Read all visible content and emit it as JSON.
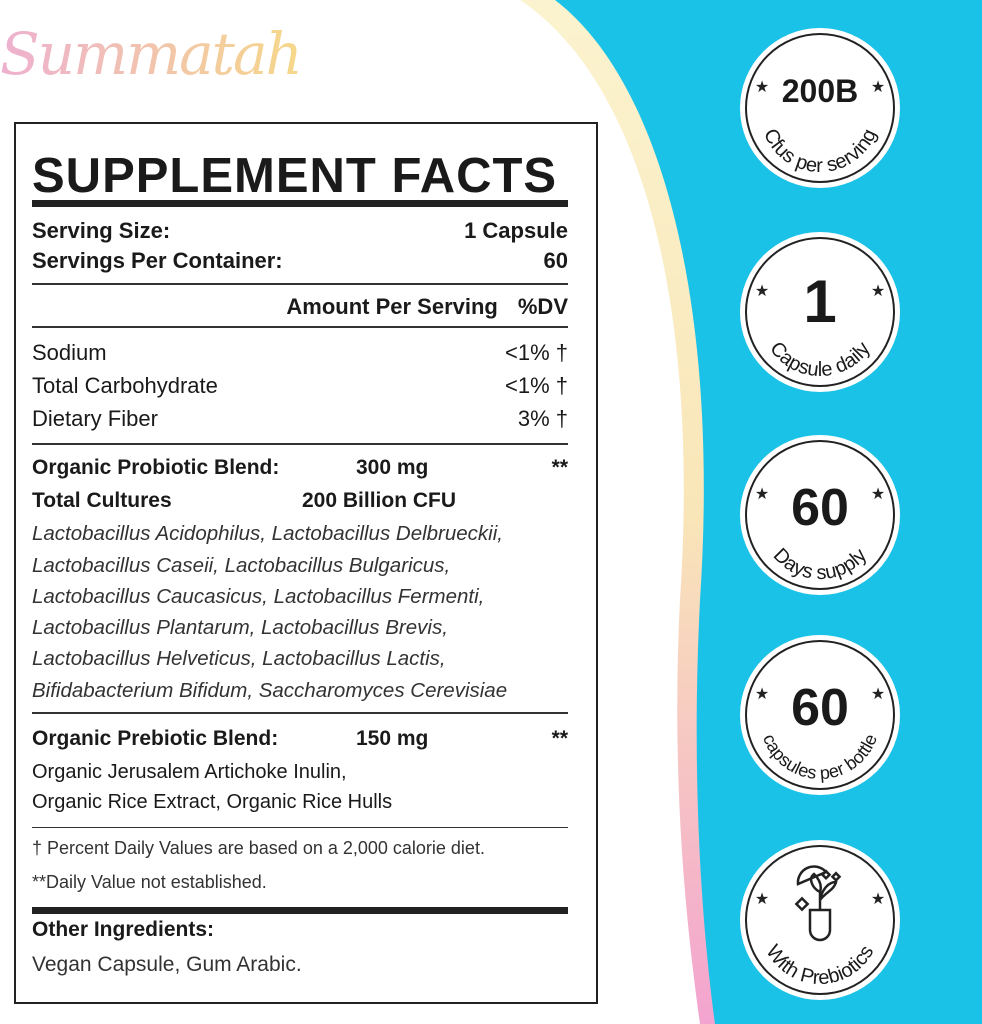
{
  "brand": "Summatah",
  "colors": {
    "accent": "#1bc2e8",
    "stripe_top": "#f9ecb0",
    "stripe_bottom": "#f2a6cf"
  },
  "facts": {
    "title": "SUPPLEMENT FACTS",
    "serving_size_label": "Serving Size:",
    "serving_size": "1 Capsule",
    "servings_label": "Servings Per Container:",
    "servings": "60",
    "amount_label": "Amount Per Serving",
    "dv_label": "%DV",
    "nutrients": [
      {
        "name": "Sodium",
        "dv": "<1% †"
      },
      {
        "name": "Total Carbohydrate",
        "dv": "<1% †"
      },
      {
        "name": "Dietary Fiber",
        "dv": "3% †"
      }
    ],
    "probiotic": {
      "name": "Organic Probiotic Blend:",
      "amount": "300 mg",
      "dv": "**",
      "cultures_label": "Total Cultures",
      "cultures": "200 Billion CFU",
      "strains": [
        "Lactobacillus Acidophilus, Lactobacillus Delbrueckii,",
        "Lactobacillus Caseii, Lactobacillus Bulgaricus,",
        "Lactobacillus Caucasicus, Lactobacillus Fermenti,",
        "Lactobacillus Plantarum, Lactobacillus Brevis,",
        "Lactobacillus Helveticus, Lactobacillus Lactis,",
        "Bifidabacterium Bifidum, Saccharomyces Cerevisiae"
      ]
    },
    "prebiotic": {
      "name": "Organic Prebiotic Blend:",
      "amount": "150 mg",
      "dv": "**",
      "lines": [
        "Organic Jerusalem Artichoke Inulin,",
        "Organic Rice Extract, Organic Rice Hulls"
      ]
    },
    "footnotes": [
      "† Percent Daily Values are based on a 2,000 calorie diet.",
      "**Daily Value not established."
    ],
    "other_label": "Other Ingredients:",
    "other": "Vegan Capsule, Gum Arabic."
  },
  "badges": [
    {
      "big": "200B",
      "curve": "Cfus per serving",
      "icon": "stars"
    },
    {
      "big": "1",
      "curve": "Capsule daily",
      "icon": "stars"
    },
    {
      "big": "60",
      "curve": "Days supply",
      "icon": "stars"
    },
    {
      "big": "60",
      "curve": "capsules per bottle",
      "icon": "stars"
    },
    {
      "big": "",
      "curve": "With Prebiotics",
      "icon": "capsule-sprout-icon"
    }
  ]
}
